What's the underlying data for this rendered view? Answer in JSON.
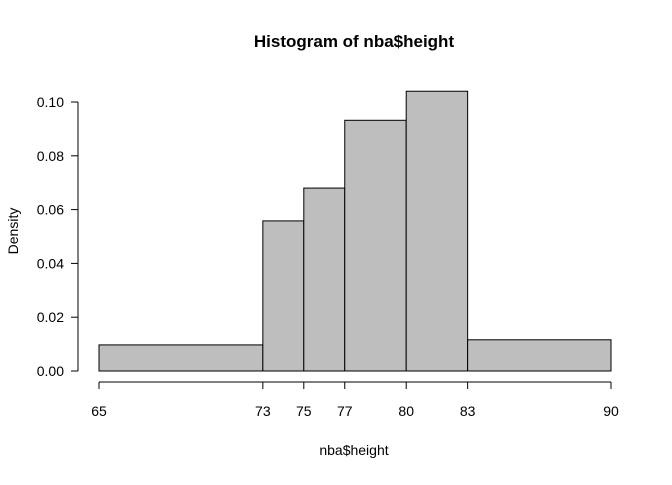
{
  "chart_data": {
    "type": "bar",
    "title": "Histogram of nba$height",
    "xlabel": "nba$height",
    "ylabel": "Density",
    "bins": [
      {
        "start": 65,
        "end": 73,
        "density": 0.0097
      },
      {
        "start": 73,
        "end": 75,
        "density": 0.0558
      },
      {
        "start": 75,
        "end": 77,
        "density": 0.068
      },
      {
        "start": 77,
        "end": 80,
        "density": 0.0932
      },
      {
        "start": 80,
        "end": 83,
        "density": 0.104
      },
      {
        "start": 83,
        "end": 90,
        "density": 0.0116
      }
    ],
    "xticks": [
      65,
      73,
      75,
      77,
      80,
      83,
      90
    ],
    "yticks": [
      "0.00",
      "0.02",
      "0.04",
      "0.06",
      "0.08",
      "0.10"
    ],
    "xlim": [
      65,
      90
    ],
    "ylim": [
      0,
      0.1
    ],
    "grid": false,
    "legend": "none"
  }
}
